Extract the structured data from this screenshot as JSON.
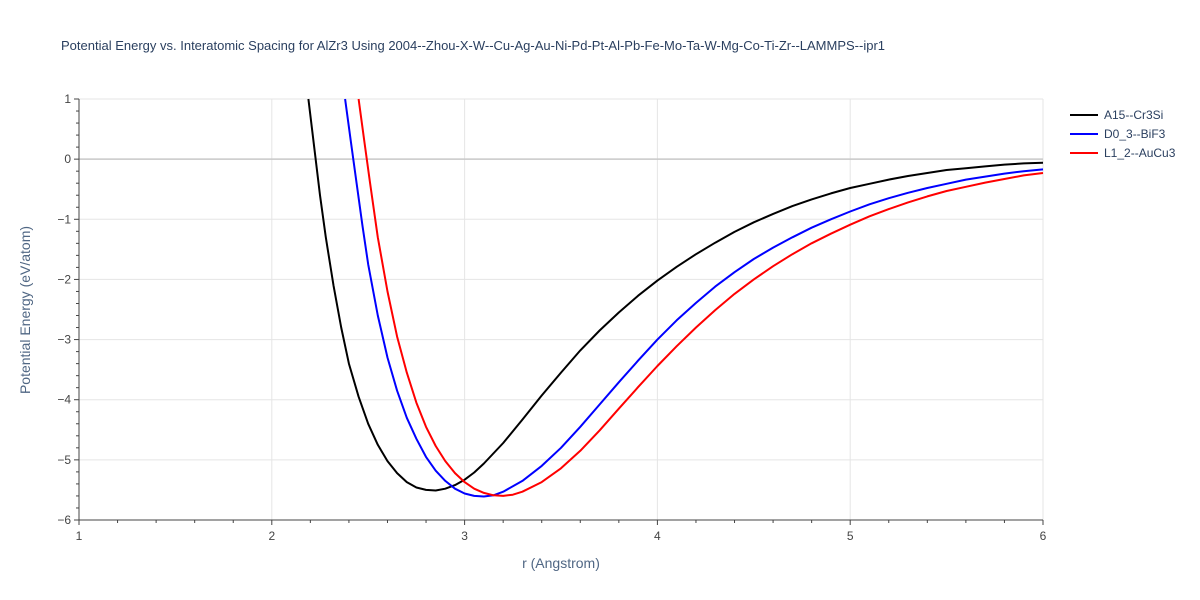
{
  "chart_data": {
    "type": "line",
    "title": "Potential Energy vs. Interatomic Spacing for AlZr3 Using 2004--Zhou-X-W--Cu-Ag-Au-Ni-Pd-Pt-Al-Pb-Fe-Mo-Ta-W-Mg-Co-Ti-Zr--LAMMPS--ipr1",
    "xlabel": "r (Angstrom)",
    "ylabel": "Potential Energy (eV/atom)",
    "xlim": [
      1,
      6
    ],
    "ylim": [
      -6,
      1
    ],
    "xticks": [
      1,
      2,
      3,
      4,
      5,
      6
    ],
    "yticks": [
      1,
      0,
      -1,
      -2,
      -3,
      -4,
      -5,
      -6
    ],
    "ytick_labels": [
      "1",
      "0",
      "−1",
      "−2",
      "−3",
      "−4",
      "−5",
      "−6"
    ],
    "grid": true,
    "legend_position": "top-right",
    "series": [
      {
        "name": "A15--Cr3Si",
        "color": "#000000",
        "points": [
          [
            2.19,
            1.0
          ],
          [
            2.22,
            0.2
          ],
          [
            2.25,
            -0.6
          ],
          [
            2.28,
            -1.3
          ],
          [
            2.32,
            -2.1
          ],
          [
            2.36,
            -2.8
          ],
          [
            2.4,
            -3.4
          ],
          [
            2.45,
            -3.95
          ],
          [
            2.5,
            -4.4
          ],
          [
            2.55,
            -4.75
          ],
          [
            2.6,
            -5.02
          ],
          [
            2.65,
            -5.22
          ],
          [
            2.7,
            -5.37
          ],
          [
            2.75,
            -5.46
          ],
          [
            2.8,
            -5.5
          ],
          [
            2.85,
            -5.51
          ],
          [
            2.9,
            -5.48
          ],
          [
            2.95,
            -5.42
          ],
          [
            3.0,
            -5.33
          ],
          [
            3.05,
            -5.21
          ],
          [
            3.1,
            -5.06
          ],
          [
            3.2,
            -4.72
          ],
          [
            3.3,
            -4.33
          ],
          [
            3.4,
            -3.93
          ],
          [
            3.5,
            -3.55
          ],
          [
            3.6,
            -3.18
          ],
          [
            3.7,
            -2.85
          ],
          [
            3.8,
            -2.55
          ],
          [
            3.9,
            -2.27
          ],
          [
            4.0,
            -2.02
          ],
          [
            4.1,
            -1.79
          ],
          [
            4.2,
            -1.58
          ],
          [
            4.3,
            -1.39
          ],
          [
            4.4,
            -1.21
          ],
          [
            4.5,
            -1.05
          ],
          [
            4.6,
            -0.91
          ],
          [
            4.7,
            -0.78
          ],
          [
            4.8,
            -0.67
          ],
          [
            4.9,
            -0.57
          ],
          [
            5.0,
            -0.48
          ],
          [
            5.1,
            -0.41
          ],
          [
            5.2,
            -0.34
          ],
          [
            5.3,
            -0.28
          ],
          [
            5.4,
            -0.23
          ],
          [
            5.5,
            -0.18
          ],
          [
            5.6,
            -0.15
          ],
          [
            5.7,
            -0.12
          ],
          [
            5.8,
            -0.09
          ],
          [
            5.9,
            -0.07
          ],
          [
            6.0,
            -0.06
          ]
        ]
      },
      {
        "name": "D0_3--BiF3",
        "color": "#0000ff",
        "points": [
          [
            2.38,
            1.0
          ],
          [
            2.41,
            0.3
          ],
          [
            2.44,
            -0.4
          ],
          [
            2.47,
            -1.1
          ],
          [
            2.5,
            -1.75
          ],
          [
            2.55,
            -2.6
          ],
          [
            2.6,
            -3.3
          ],
          [
            2.65,
            -3.85
          ],
          [
            2.7,
            -4.3
          ],
          [
            2.75,
            -4.65
          ],
          [
            2.8,
            -4.95
          ],
          [
            2.85,
            -5.18
          ],
          [
            2.9,
            -5.35
          ],
          [
            2.95,
            -5.48
          ],
          [
            3.0,
            -5.56
          ],
          [
            3.05,
            -5.6
          ],
          [
            3.1,
            -5.61
          ],
          [
            3.15,
            -5.59
          ],
          [
            3.2,
            -5.53
          ],
          [
            3.3,
            -5.35
          ],
          [
            3.4,
            -5.1
          ],
          [
            3.5,
            -4.8
          ],
          [
            3.6,
            -4.45
          ],
          [
            3.7,
            -4.08
          ],
          [
            3.8,
            -3.71
          ],
          [
            3.9,
            -3.35
          ],
          [
            4.0,
            -3.0
          ],
          [
            4.1,
            -2.68
          ],
          [
            4.2,
            -2.39
          ],
          [
            4.3,
            -2.12
          ],
          [
            4.4,
            -1.88
          ],
          [
            4.5,
            -1.66
          ],
          [
            4.6,
            -1.47
          ],
          [
            4.7,
            -1.3
          ],
          [
            4.8,
            -1.14
          ],
          [
            4.9,
            -1.0
          ],
          [
            5.0,
            -0.87
          ],
          [
            5.1,
            -0.75
          ],
          [
            5.2,
            -0.65
          ],
          [
            5.3,
            -0.56
          ],
          [
            5.4,
            -0.48
          ],
          [
            5.5,
            -0.41
          ],
          [
            5.6,
            -0.34
          ],
          [
            5.7,
            -0.29
          ],
          [
            5.8,
            -0.24
          ],
          [
            5.9,
            -0.2
          ],
          [
            6.0,
            -0.17
          ]
        ]
      },
      {
        "name": "L1_2--AuCu3",
        "color": "#ff0000",
        "points": [
          [
            2.45,
            1.0
          ],
          [
            2.48,
            0.3
          ],
          [
            2.51,
            -0.4
          ],
          [
            2.55,
            -1.3
          ],
          [
            2.6,
            -2.2
          ],
          [
            2.65,
            -2.95
          ],
          [
            2.7,
            -3.55
          ],
          [
            2.75,
            -4.05
          ],
          [
            2.8,
            -4.45
          ],
          [
            2.85,
            -4.77
          ],
          [
            2.9,
            -5.02
          ],
          [
            2.95,
            -5.22
          ],
          [
            3.0,
            -5.37
          ],
          [
            3.05,
            -5.48
          ],
          [
            3.1,
            -5.55
          ],
          [
            3.15,
            -5.59
          ],
          [
            3.2,
            -5.6
          ],
          [
            3.25,
            -5.58
          ],
          [
            3.3,
            -5.53
          ],
          [
            3.4,
            -5.37
          ],
          [
            3.5,
            -5.14
          ],
          [
            3.6,
            -4.85
          ],
          [
            3.7,
            -4.51
          ],
          [
            3.8,
            -4.15
          ],
          [
            3.9,
            -3.79
          ],
          [
            4.0,
            -3.44
          ],
          [
            4.1,
            -3.11
          ],
          [
            4.2,
            -2.8
          ],
          [
            4.3,
            -2.51
          ],
          [
            4.4,
            -2.24
          ],
          [
            4.5,
            -2.0
          ],
          [
            4.6,
            -1.78
          ],
          [
            4.7,
            -1.58
          ],
          [
            4.8,
            -1.4
          ],
          [
            4.9,
            -1.24
          ],
          [
            5.0,
            -1.09
          ],
          [
            5.1,
            -0.95
          ],
          [
            5.2,
            -0.83
          ],
          [
            5.3,
            -0.72
          ],
          [
            5.4,
            -0.62
          ],
          [
            5.5,
            -0.53
          ],
          [
            5.6,
            -0.46
          ],
          [
            5.7,
            -0.39
          ],
          [
            5.8,
            -0.33
          ],
          [
            5.9,
            -0.27
          ],
          [
            6.0,
            -0.23
          ]
        ]
      }
    ]
  }
}
